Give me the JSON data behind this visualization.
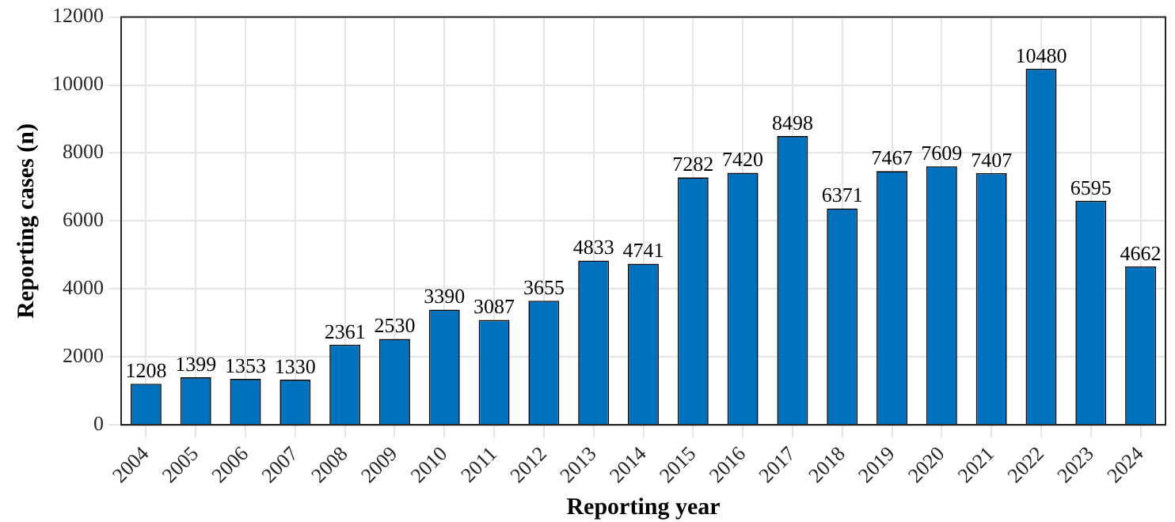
{
  "chart_data": {
    "type": "bar",
    "xlabel": "Reporting year",
    "ylabel": "Reporting cases (n)",
    "categories": [
      "2004",
      "2005",
      "2006",
      "2007",
      "2008",
      "2009",
      "2010",
      "2011",
      "2012",
      "2013",
      "2014",
      "2015",
      "2016",
      "2017",
      "2018",
      "2019",
      "2020",
      "2021",
      "2022",
      "2023",
      "2024"
    ],
    "values": [
      1208,
      1399,
      1353,
      1330,
      2361,
      2530,
      3390,
      3087,
      3655,
      4833,
      4741,
      7282,
      7420,
      8498,
      6371,
      7467,
      7609,
      7407,
      10480,
      6595,
      4662
    ],
    "color": "#0072bd",
    "ylim": [
      0,
      12000
    ],
    "yticks": [
      0,
      2000,
      4000,
      6000,
      8000,
      10000,
      12000
    ],
    "grid": true,
    "data_labels": true
  }
}
